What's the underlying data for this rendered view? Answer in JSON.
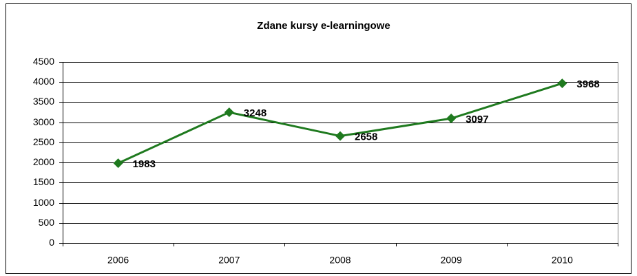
{
  "chart_data": {
    "type": "line",
    "title": "Zdane kursy e-learningowe",
    "categories": [
      "2006",
      "2007",
      "2008",
      "2009",
      "2010"
    ],
    "series": [
      {
        "name": "Zdane kursy",
        "color": "#1f7a1f",
        "values": [
          1983,
          3248,
          2658,
          3097,
          3968
        ]
      }
    ],
    "ylim": [
      0,
      4500
    ],
    "yticks": [
      0,
      500,
      1000,
      1500,
      2000,
      2500,
      3000,
      3500,
      4000,
      4500
    ],
    "grid": true,
    "data_labels": true
  }
}
